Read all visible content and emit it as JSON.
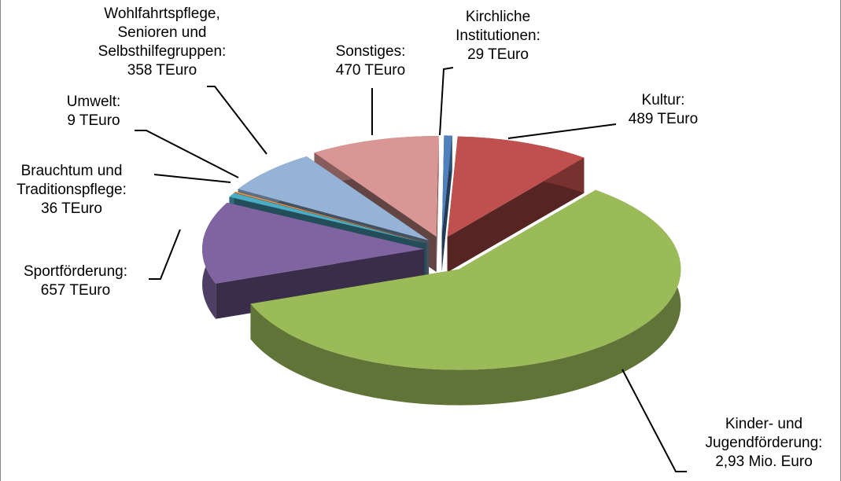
{
  "chart_data": {
    "type": "pie3d",
    "categories": [
      "Kirchliche Institutionen:",
      "Kultur:",
      "Kinder- und Jugendförderung:",
      "Sportförderung:",
      "Brauchtum und Traditionspflege:",
      "Umwelt:",
      "Wohlfahrtspflege, Senioren und Selbsthilfegruppen:",
      "Sonstiges:"
    ],
    "values": [
      29,
      489,
      2930,
      657,
      36,
      9,
      358,
      470
    ],
    "value_labels": [
      "29 TEuro",
      "489 TEuro",
      "2,93 Mio. Euro",
      "657 TEuro",
      "36 TEuro",
      "9 TEuro",
      "358 TEuro",
      "470 TEuro"
    ],
    "colors": [
      "#4f81bd",
      "#c0504d",
      "#9bbb59",
      "#8064a2",
      "#4bacc6",
      "#f79646",
      "#95b3d7",
      "#d99694"
    ]
  }
}
